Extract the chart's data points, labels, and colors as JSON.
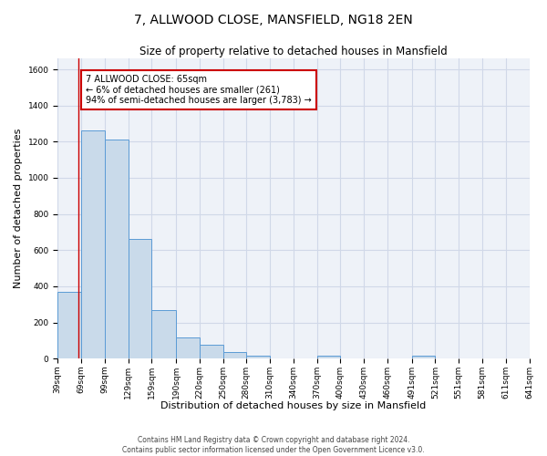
{
  "title": "7, ALLWOOD CLOSE, MANSFIELD, NG18 2EN",
  "subtitle": "Size of property relative to detached houses in Mansfield",
  "xlabel": "Distribution of detached houses by size in Mansfield",
  "ylabel": "Number of detached properties",
  "bar_left_edges": [
    39,
    69,
    99,
    129,
    159,
    190,
    220,
    250,
    280,
    310,
    340,
    370,
    400,
    430,
    460,
    491,
    521,
    551,
    581,
    611
  ],
  "bar_widths": [
    30,
    30,
    30,
    30,
    31,
    30,
    30,
    30,
    30,
    30,
    30,
    30,
    30,
    30,
    31,
    30,
    30,
    30,
    30,
    30
  ],
  "bar_heights": [
    370,
    1260,
    1210,
    660,
    270,
    115,
    75,
    35,
    15,
    0,
    0,
    15,
    0,
    0,
    0,
    15,
    0,
    0,
    0,
    0
  ],
  "bar_facecolor": "#c9daea",
  "bar_edgecolor": "#5b9bd5",
  "property_line_x": 65,
  "property_line_color": "#cc0000",
  "annotation_line1": "7 ALLWOOD CLOSE: 65sqm",
  "annotation_line2": "← 6% of detached houses are smaller (261)",
  "annotation_line3": "94% of semi-detached houses are larger (3,783) →",
  "annotation_box_color": "#cc0000",
  "annotation_box_facecolor": "white",
  "xlim": [
    39,
    641
  ],
  "ylim": [
    0,
    1660
  ],
  "yticks": [
    0,
    200,
    400,
    600,
    800,
    1000,
    1200,
    1400,
    1600
  ],
  "grid_color": "#d0d8e8",
  "bg_color": "#eef2f8",
  "title_fontsize": 10,
  "subtitle_fontsize": 8.5,
  "label_fontsize": 8,
  "tick_fontsize": 6.5,
  "ann_fontsize": 7,
  "footer_text": "Contains HM Land Registry data © Crown copyright and database right 2024.\nContains public sector information licensed under the Open Government Licence v3.0.",
  "xtick_labels": [
    "39sqm",
    "69sqm",
    "99sqm",
    "129sqm",
    "159sqm",
    "190sqm",
    "220sqm",
    "250sqm",
    "280sqm",
    "310sqm",
    "340sqm",
    "370sqm",
    "400sqm",
    "430sqm",
    "460sqm",
    "491sqm",
    "521sqm",
    "551sqm",
    "581sqm",
    "611sqm",
    "641sqm"
  ],
  "xtick_positions": [
    39,
    69,
    99,
    129,
    159,
    190,
    220,
    250,
    280,
    310,
    340,
    370,
    400,
    430,
    460,
    491,
    521,
    551,
    581,
    611,
    641
  ]
}
